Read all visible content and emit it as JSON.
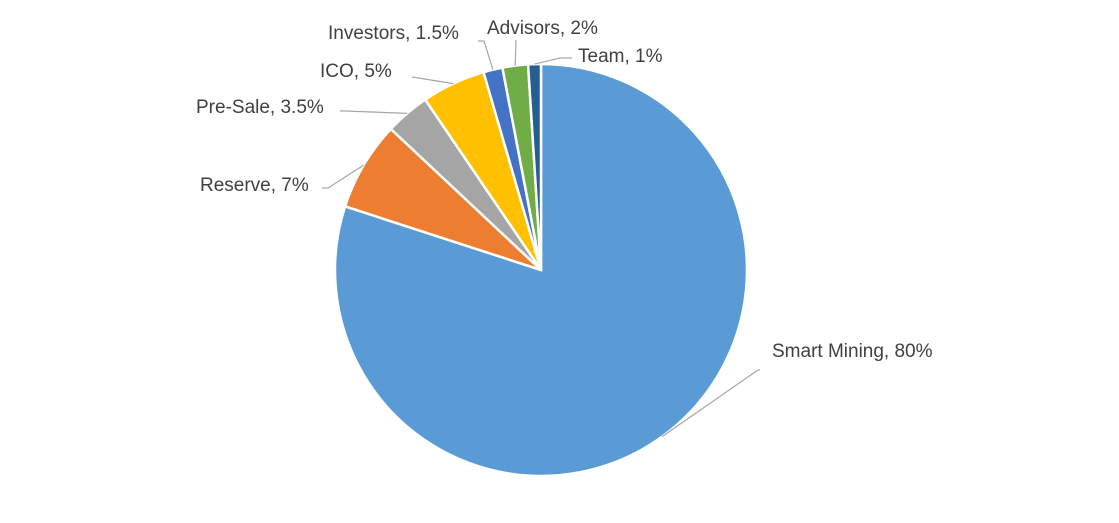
{
  "chart_data": {
    "type": "pie",
    "title": "",
    "slices": [
      {
        "name": "Smart Mining",
        "value": 80,
        "color": "#5B9BD5",
        "label": "Smart Mining, 80%"
      },
      {
        "name": "Reserve",
        "value": 7,
        "color": "#ED7D31",
        "label": "Reserve, 7%"
      },
      {
        "name": "Pre-Sale",
        "value": 3.5,
        "color": "#A5A5A5",
        "label": "Pre-Sale, 3.5%"
      },
      {
        "name": "ICO",
        "value": 5,
        "color": "#FFC000",
        "label": "ICO, 5%"
      },
      {
        "name": "Investors",
        "value": 1.5,
        "color": "#4472C4",
        "label": "Investors, 1.5%"
      },
      {
        "name": "Advisors",
        "value": 2,
        "color": "#70AD47",
        "label": "Advisors, 2%"
      },
      {
        "name": "Team",
        "value": 1,
        "color": "#255E91",
        "label": "Team, 1%"
      }
    ],
    "start_angle": "12 o'clock",
    "direction": "clockwise",
    "legend": "none",
    "data_labels": "outside with leader lines"
  }
}
